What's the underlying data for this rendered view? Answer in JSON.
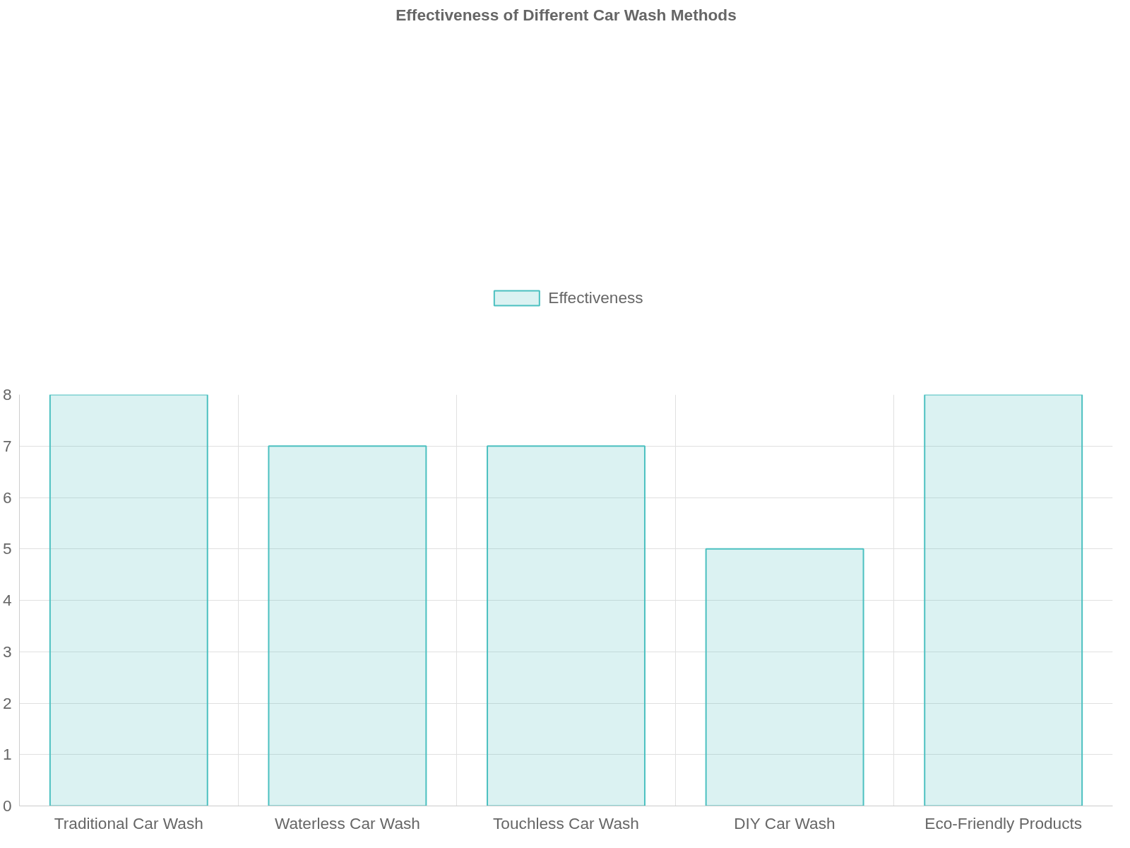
{
  "chart_data": {
    "type": "bar",
    "title": "Effectiveness of Different Car Wash Methods",
    "categories": [
      "Traditional Car Wash",
      "Waterless Car Wash",
      "Touchless Car Wash",
      "DIY Car Wash",
      "Eco-Friendly Products"
    ],
    "series": [
      {
        "name": "Effectiveness",
        "color": "#4bc0c0",
        "values": [
          8,
          7,
          7,
          5,
          8
        ]
      }
    ],
    "ylim": [
      0,
      8
    ],
    "yticks": [
      0,
      1,
      2,
      3,
      4,
      5,
      6,
      7,
      8
    ],
    "grid": true,
    "legend": "top"
  }
}
